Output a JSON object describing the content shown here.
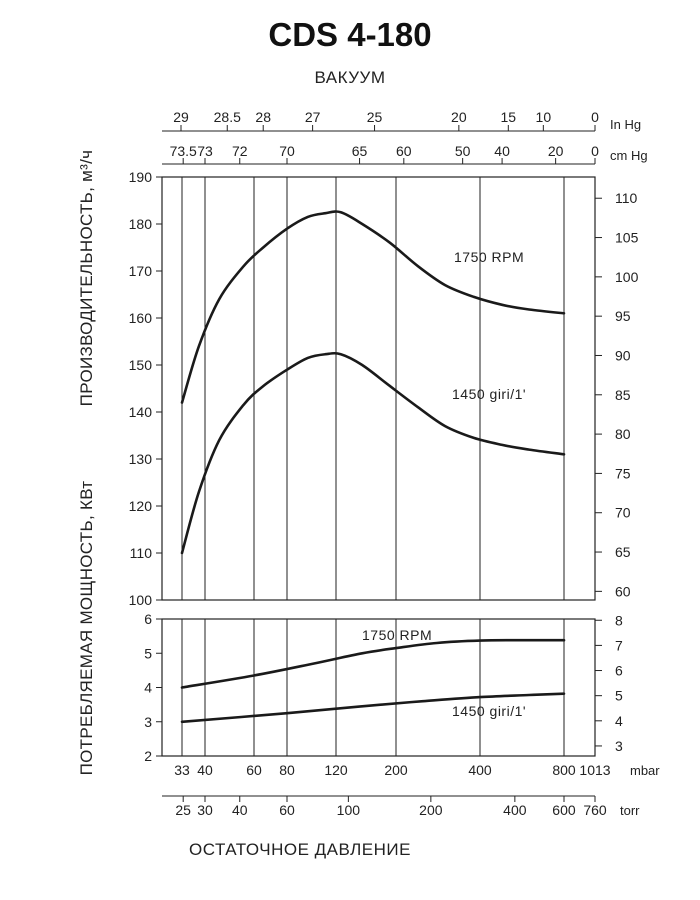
{
  "title": "CDS 4-180",
  "subtitle": "ВАКУУМ",
  "xlabel": "ОСТАТОЧНОЕ ДАВЛЕНИЕ",
  "ylabel_top": "ПРОИЗВОДИТЕЛЬНОСТЬ, м³/ч",
  "ylabel_bottom": "ПОТРЕБЛЯЕМАЯ МОЩНОСТЬ, КВт",
  "units": {
    "inhg": "In Hg",
    "cmhg": "cm Hg",
    "mbar": "mbar",
    "torr": "torr"
  },
  "chart_data": [
    {
      "type": "line",
      "name": "capacity",
      "x_unit": "mbar",
      "ylim": [
        100,
        190
      ],
      "y_ticks": [
        100,
        110,
        120,
        130,
        140,
        150,
        160,
        170,
        180,
        190
      ],
      "y2lim": [
        58.9,
        112.7
      ],
      "y2_ticks": [
        60,
        65,
        70,
        75,
        80,
        85,
        90,
        95,
        100,
        105,
        110
      ],
      "x_ticks_mbar": [
        33,
        40,
        60,
        80,
        120,
        200,
        400,
        800,
        1013
      ],
      "x_ticks_torr": [
        25,
        30,
        40,
        60,
        100,
        200,
        400,
        600,
        760
      ],
      "x_ticks_cmhg": [
        73.5,
        73,
        72,
        70,
        65,
        60,
        50,
        40,
        20,
        0
      ],
      "x_ticks_inhg": [
        29,
        28.5,
        28,
        27,
        25,
        20,
        15,
        10,
        0
      ],
      "series": [
        {
          "name": "1750 RPM",
          "x": [
            33,
            38,
            45,
            55,
            65,
            80,
            95,
            110,
            125,
            150,
            190,
            240,
            300,
            380,
            480,
            600,
            800
          ],
          "y": [
            142,
            154,
            164,
            171,
            175,
            179,
            181.5,
            182.3,
            182.5,
            180,
            176,
            171,
            167,
            164.5,
            162.8,
            161.8,
            161
          ]
        },
        {
          "name": "1450 giri/1'",
          "x": [
            33,
            38,
            45,
            55,
            65,
            80,
            95,
            110,
            125,
            150,
            190,
            240,
            300,
            380,
            480,
            600,
            800
          ],
          "y": [
            110,
            123,
            134,
            141.5,
            145.5,
            149,
            151.5,
            152.3,
            152.3,
            150,
            145.5,
            141,
            137,
            134.5,
            133,
            132,
            131
          ]
        }
      ]
    },
    {
      "type": "line",
      "name": "power",
      "x_unit": "mbar",
      "ylim": [
        2,
        6
      ],
      "y_ticks": [
        2,
        3,
        4,
        5,
        6
      ],
      "y2lim": [
        2.6,
        8.05
      ],
      "y2_ticks": [
        3,
        4,
        5,
        6,
        7,
        8
      ],
      "series": [
        {
          "name": "1750 RPM",
          "x": [
            33,
            60,
            100,
            150,
            200,
            280,
            400,
            550,
            800
          ],
          "y": [
            4.0,
            4.35,
            4.7,
            5.0,
            5.15,
            5.3,
            5.37,
            5.38,
            5.38
          ]
        },
        {
          "name": "1450 giri/1'",
          "x": [
            33,
            80,
            150,
            250,
            400,
            600,
            800
          ],
          "y": [
            3.0,
            3.25,
            3.45,
            3.6,
            3.72,
            3.78,
            3.82
          ]
        }
      ]
    }
  ]
}
